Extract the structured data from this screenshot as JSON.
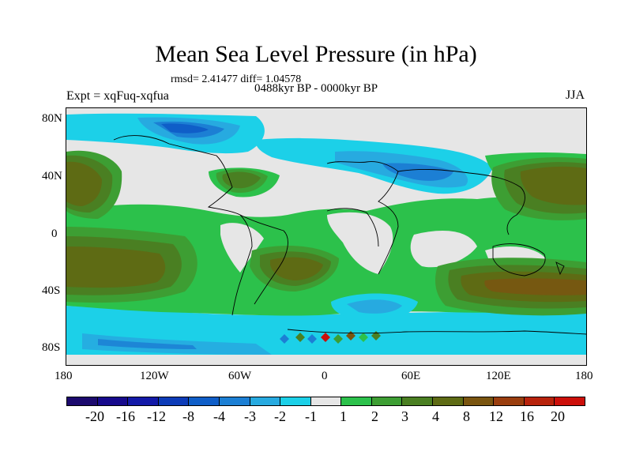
{
  "header": {
    "title": "Mean Sea Level Pressure (in hPa)",
    "stats": "rmsd= 2.41477 diff= 1.04578",
    "period": "0488kyr BP - 0000kyr BP",
    "experiment": "Expt = xqFuq-xqfua",
    "season": "JJA"
  },
  "map": {
    "y_ticks": [
      "80N",
      "40N",
      "0",
      "40S",
      "80S"
    ],
    "x_ticks": [
      "180",
      "120W",
      "60W",
      "0",
      "60E",
      "120E",
      "180"
    ]
  },
  "colorbar": {
    "colors": [
      "#1c0a6e",
      "#170a8c",
      "#131aa8",
      "#0d3cb8",
      "#0f5ec8",
      "#1c7fd4",
      "#27aae0",
      "#1cd0e8",
      "#e6e6e6",
      "#2cc14b",
      "#3d9e33",
      "#4a7f22",
      "#5e6b14",
      "#7a5510",
      "#9a3e0e",
      "#b8230c",
      "#cc0f0a"
    ],
    "labels": [
      "-20",
      "-16",
      "-12",
      "-8",
      "-4",
      "-3",
      "-2",
      "-1",
      "1",
      "2",
      "3",
      "4",
      "8",
      "12",
      "16",
      "20"
    ]
  }
}
